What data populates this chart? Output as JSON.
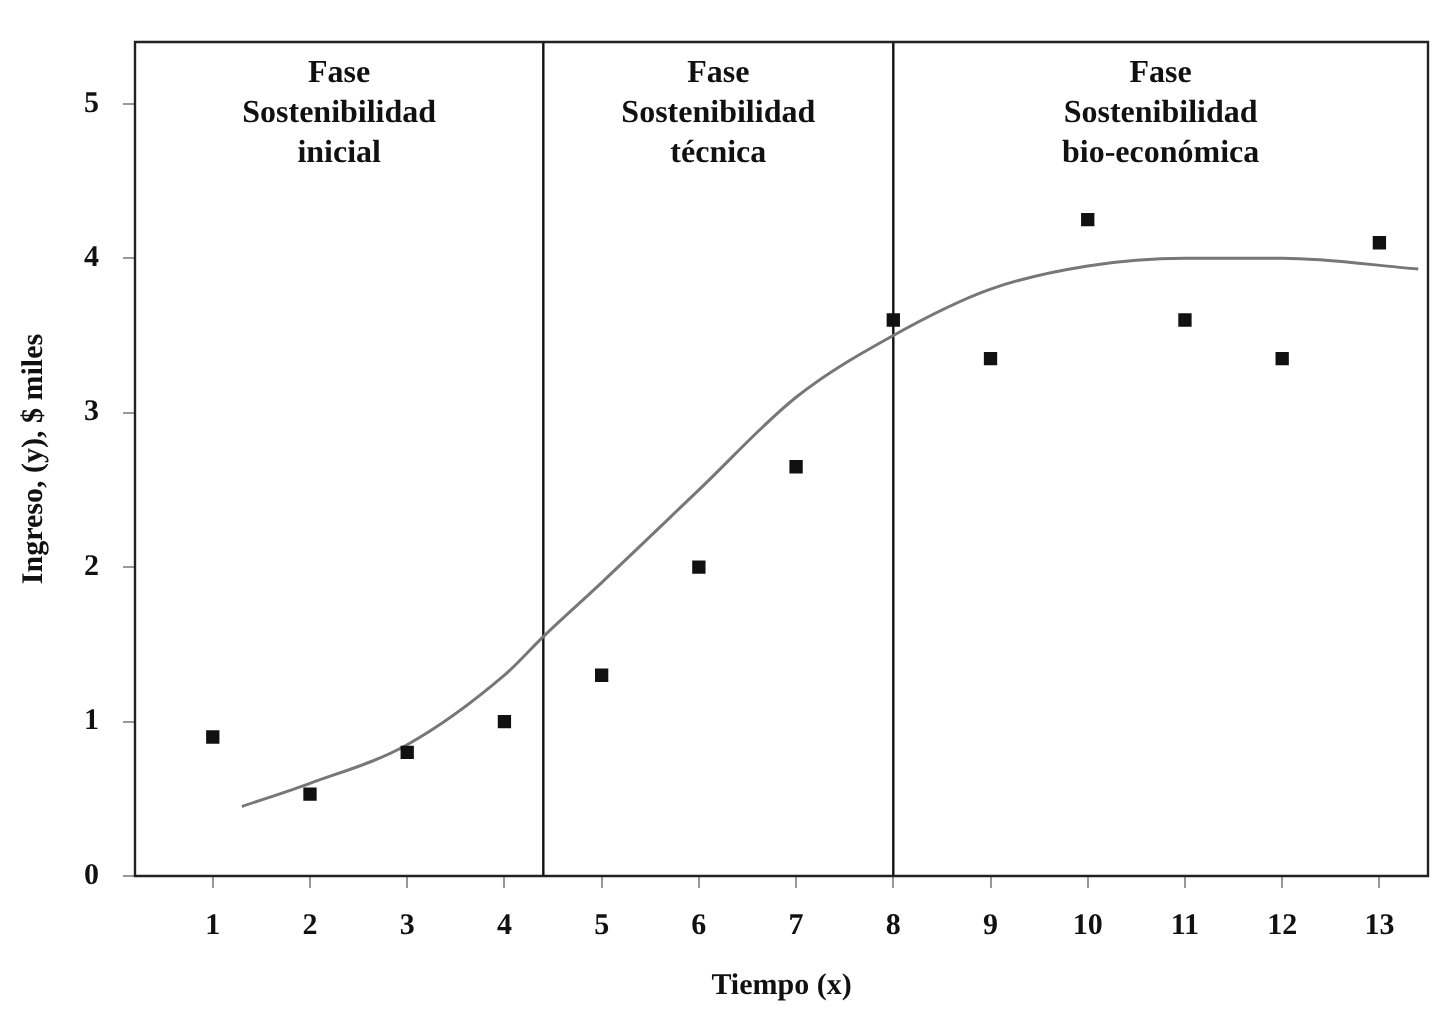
{
  "chart_data": {
    "type": "scatter",
    "xlabel": "Tiempo (x)",
    "ylabel": "Ingreso, (y), $ miles",
    "xlim": [
      0.2,
      13.5
    ],
    "xticks": [
      1,
      2,
      3,
      4,
      5,
      6,
      7,
      8,
      9,
      10,
      11,
      12,
      13
    ],
    "ylim": [
      0,
      5.4
    ],
    "yticks": [
      0,
      1,
      2,
      3,
      4,
      5
    ],
    "grid": false,
    "legend": false,
    "marker": "square",
    "series": [
      {
        "color": "#111111",
        "x": [
          1,
          2,
          3,
          4,
          5,
          6,
          7,
          8,
          9,
          10,
          11,
          12,
          13
        ],
        "values": [
          0.9,
          0.53,
          0.8,
          1.0,
          1.3,
          2.0,
          2.65,
          3.6,
          3.35,
          4.25,
          3.6,
          3.35,
          4.1
        ]
      },
      {
        "type": "line",
        "color": "#777777",
        "marker": "none",
        "x": [
          1.3,
          2,
          3,
          4,
          4.4,
          5,
          6,
          7,
          8,
          9,
          10,
          11,
          12,
          13.4
        ],
        "values": [
          0.45,
          0.6,
          0.85,
          1.3,
          1.55,
          1.9,
          2.5,
          3.1,
          3.5,
          3.8,
          3.95,
          4.0,
          4.0,
          3.93
        ]
      }
    ],
    "ref_lines": [
      {
        "axis": "x",
        "value": 4.4,
        "color": "#111111"
      },
      {
        "axis": "x",
        "value": 8,
        "color": "#111111"
      }
    ],
    "annotations": [
      "Fase\nSostenibilidad\ninicial",
      "Fase\nSostenibilidad\ntécnica",
      "Fase\nSostenibilidad\nbio-económica"
    ]
  }
}
